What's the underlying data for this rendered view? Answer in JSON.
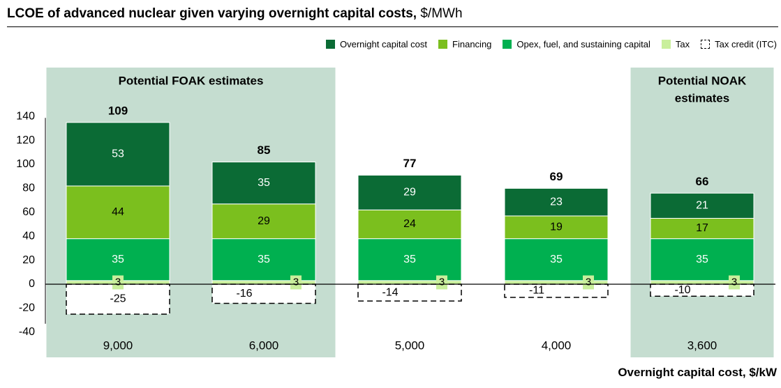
{
  "header": {
    "title": "LCOE of advanced nuclear given varying overnight capital costs,",
    "unit": "$/MWh"
  },
  "legend": [
    {
      "name": "Overnight capital cost",
      "color": "#0b6b35",
      "style": "solid"
    },
    {
      "name": "Financing",
      "color": "#7bbf1e",
      "style": "solid"
    },
    {
      "name": "Opex, fuel, and sustaining capital",
      "color": "#00b050",
      "style": "solid"
    },
    {
      "name": "Tax",
      "color": "#c9ef9c",
      "style": "solid"
    },
    {
      "name": "Tax credit (ITC)",
      "color": "#ffffff",
      "style": "dashed"
    }
  ],
  "regions": [
    {
      "label_lines": [
        "Potential FOAK estimates"
      ],
      "from": 0,
      "to": 1
    },
    {
      "label_lines": [
        "Potential NOAK",
        "estimates"
      ],
      "from": 4,
      "to": 4
    }
  ],
  "x_axis_title": "Overnight capital cost, $/kW",
  "chart_data": {
    "type": "bar",
    "stacked": true,
    "title": "LCOE of advanced nuclear given varying overnight capital costs, $/MWh",
    "xlabel": "Overnight capital cost, $/kW",
    "ylabel": "",
    "categories": [
      "9,000",
      "6,000",
      "5,000",
      "4,000",
      "3,600"
    ],
    "ylim": [
      -40,
      140
    ],
    "yticks": [
      -40,
      -20,
      0,
      20,
      40,
      60,
      80,
      100,
      120,
      140
    ],
    "series": [
      {
        "name": "Tax",
        "color": "#c9ef9c",
        "values": [
          3,
          3,
          3,
          3,
          3
        ]
      },
      {
        "name": "Opex, fuel, and sustaining capital",
        "color": "#00b050",
        "values": [
          35,
          35,
          35,
          35,
          35
        ]
      },
      {
        "name": "Financing",
        "color": "#7bbf1e",
        "values": [
          44,
          29,
          24,
          19,
          17
        ]
      },
      {
        "name": "Overnight capital cost",
        "color": "#0b6b35",
        "values": [
          53,
          35,
          29,
          23,
          21
        ]
      },
      {
        "name": "Tax credit (ITC)",
        "color": "#ffffff",
        "values": [
          -25,
          -16,
          -14,
          -11,
          -10
        ]
      }
    ],
    "totals": [
      109,
      85,
      77,
      69,
      66
    ],
    "legend_position": "top-right",
    "grid": false
  }
}
